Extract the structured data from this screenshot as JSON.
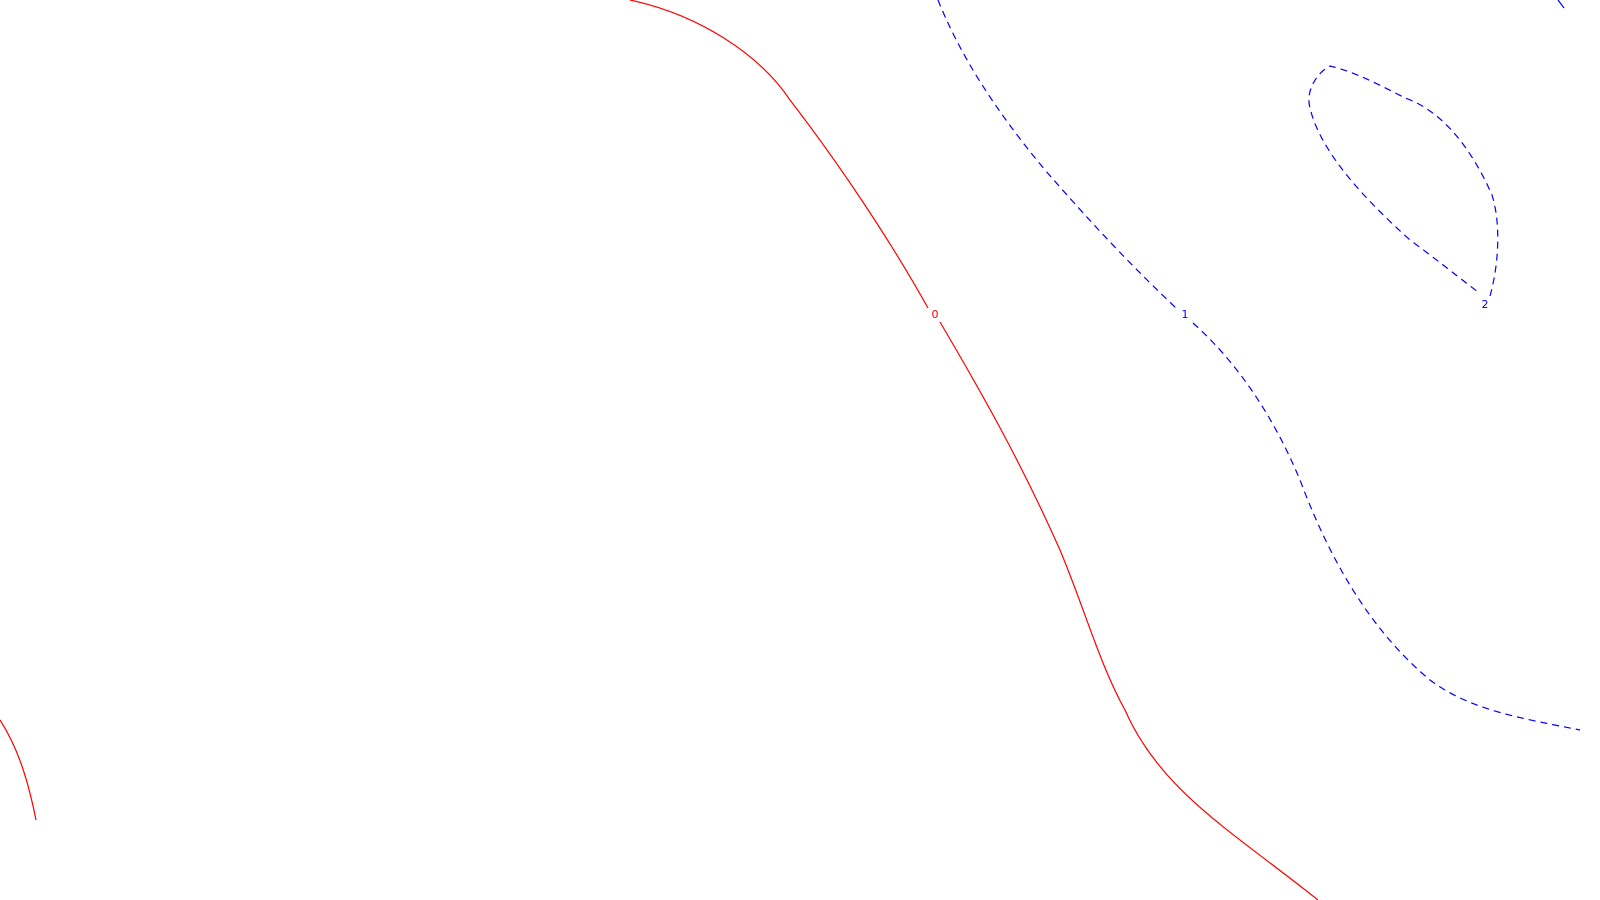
{
  "chart_data": {
    "type": "contour",
    "title": "",
    "xlabel": "",
    "ylabel": "",
    "grid": false,
    "legend": false,
    "levels": [
      {
        "level": 0,
        "label": "0",
        "color": "#ff0000",
        "style": "solid"
      },
      {
        "level": 1,
        "label": "1",
        "color": "#0000ff",
        "style": "dashed"
      },
      {
        "level": 2,
        "label": "2",
        "color": "#0000ff",
        "style": "dashed"
      }
    ]
  }
}
